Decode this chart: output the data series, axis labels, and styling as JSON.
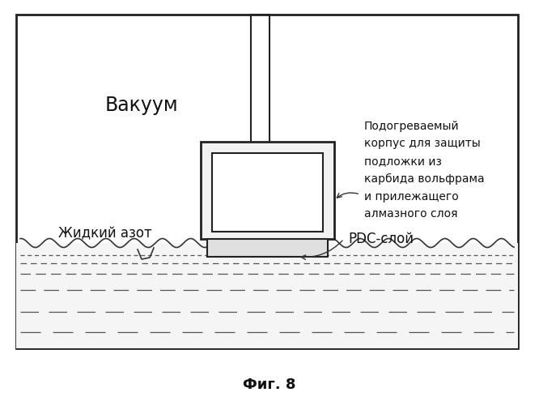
{
  "title": "Фиг. 8",
  "vacuum_label": "Вакуум",
  "liquid_nitrogen_label": "Жидкий азот",
  "pdc_layer_label": "PDC-слой",
  "heated_body_label": "Подогреваемый\nкорпус для защиты\nподложки из\nкарбида вольфрама\nи прилежащего\nалмазного слоя",
  "background_color": "#ffffff",
  "border_color": "#222222",
  "figure_bg": "#ffffff"
}
